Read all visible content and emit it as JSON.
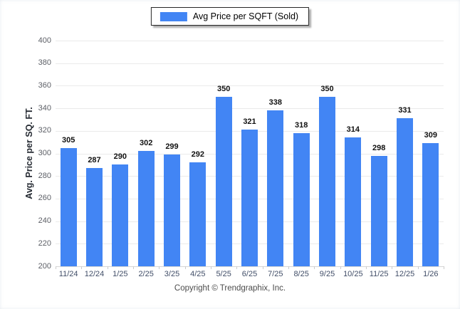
{
  "legend": {
    "label": "Avg Price per SQFT (Sold)"
  },
  "footer": {
    "copyright": "Copyright © Trendgraphix, Inc."
  },
  "colors": {
    "bar": "#4285f4",
    "gridline": "#eaeaea",
    "baseline": "#d6d6d6",
    "y_tick_text": "#5c5f66",
    "x_tick_text": "#414e68"
  },
  "chart_data": {
    "type": "bar",
    "title": "",
    "series_name": "Avg Price per SQFT (Sold)",
    "categories": [
      "11/24",
      "12/24",
      "1/25",
      "2/25",
      "3/25",
      "4/25",
      "5/25",
      "6/25",
      "7/25",
      "8/25",
      "9/25",
      "10/25",
      "11/25",
      "12/25",
      "1/26"
    ],
    "values": [
      305,
      287,
      290,
      302,
      299,
      292,
      350,
      321,
      338,
      318,
      350,
      314,
      298,
      331,
      309
    ],
    "xlabel": "",
    "ylabel": "Avg. Price per SQ. FT.",
    "ylim": [
      200,
      400
    ],
    "ytick_step": 20,
    "grid": "horizontal",
    "legend_position": "top-center",
    "bar_labels": "above"
  }
}
